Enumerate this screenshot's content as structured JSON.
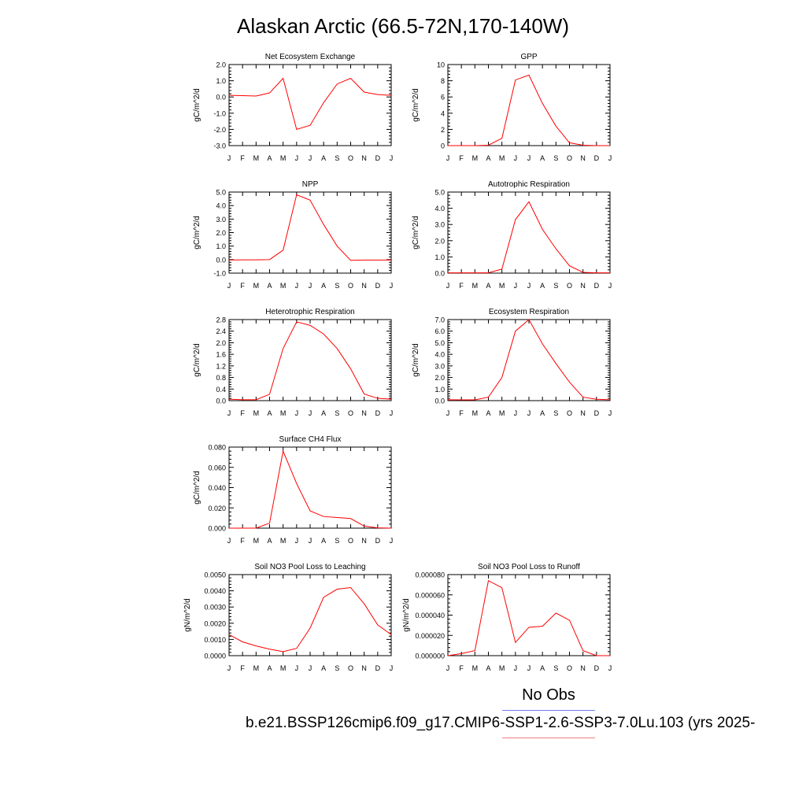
{
  "title": "Alaskan Arctic (66.5-72N,170-140W)",
  "legend": {
    "obs_label": "No Obs",
    "case_label": "b.e21.BSSP126cmip6.f09_g17.CMIP6-SSP1-2.6-SSP3-7.0Lu.103 (yrs 2025-",
    "colors": {
      "case": "#ff0000",
      "obs": "#6f7ff0"
    }
  },
  "chart_data": [
    {
      "type": "line",
      "title": "Net Ecosystem Exchange",
      "ylabel": "gC/m^2/d",
      "x": [
        "J",
        "F",
        "M",
        "A",
        "M",
        "J",
        "J",
        "A",
        "S",
        "O",
        "N",
        "D",
        "J"
      ],
      "ylim": [
        -3.0,
        2.0
      ],
      "yticks": [
        "-3.0",
        "-2.0",
        "-1.0",
        "0.0",
        "1.0",
        "2.0"
      ],
      "ytick_values": [
        -3.0,
        -2.0,
        -1.0,
        0.0,
        1.0,
        2.0
      ],
      "series": [
        {
          "values": [
            0.1,
            0.08,
            0.06,
            0.25,
            1.15,
            -2.0,
            -1.75,
            -0.35,
            0.8,
            1.15,
            0.3,
            0.15,
            0.1
          ]
        }
      ]
    },
    {
      "type": "line",
      "title": "GPP",
      "ylabel": "gC/m^2/d",
      "x": [
        "J",
        "F",
        "M",
        "A",
        "M",
        "J",
        "J",
        "A",
        "S",
        "O",
        "N",
        "D",
        "J"
      ],
      "ylim": [
        0,
        10
      ],
      "yticks": [
        "0",
        "2",
        "4",
        "6",
        "8",
        "10"
      ],
      "ytick_values": [
        0,
        2,
        4,
        6,
        8,
        10
      ],
      "series": [
        {
          "values": [
            0.0,
            0.0,
            0.0,
            0.05,
            0.9,
            8.1,
            8.7,
            5.2,
            2.4,
            0.35,
            0.05,
            0.0,
            0.0
          ]
        }
      ]
    },
    {
      "type": "line",
      "title": "NPP",
      "ylabel": "gC/m^2/d",
      "x": [
        "J",
        "F",
        "M",
        "A",
        "M",
        "J",
        "J",
        "A",
        "S",
        "O",
        "N",
        "D",
        "J"
      ],
      "ylim": [
        -1.0,
        5.0
      ],
      "yticks": [
        "-1.0",
        "0.0",
        "1.0",
        "2.0",
        "3.0",
        "4.0",
        "5.0"
      ],
      "ytick_values": [
        -1.0,
        0.0,
        1.0,
        2.0,
        3.0,
        4.0,
        5.0
      ],
      "series": [
        {
          "values": [
            -0.03,
            -0.02,
            -0.02,
            0.0,
            0.7,
            4.8,
            4.4,
            2.6,
            1.0,
            -0.05,
            -0.03,
            -0.03,
            -0.03
          ]
        }
      ]
    },
    {
      "type": "line",
      "title": "Autotrophic Respiration",
      "ylabel": "gC/m^2/d",
      "x": [
        "J",
        "F",
        "M",
        "A",
        "M",
        "J",
        "J",
        "A",
        "S",
        "O",
        "N",
        "D",
        "J"
      ],
      "ylim": [
        0,
        5.0
      ],
      "yticks": [
        "0.0",
        "1.0",
        "2.0",
        "3.0",
        "4.0",
        "5.0"
      ],
      "ytick_values": [
        0,
        1,
        2,
        3,
        4,
        5
      ],
      "series": [
        {
          "values": [
            0.02,
            0.02,
            0.02,
            0.02,
            0.25,
            3.3,
            4.4,
            2.7,
            1.5,
            0.45,
            0.05,
            0.02,
            0.02
          ]
        }
      ]
    },
    {
      "type": "line",
      "title": "Heterotrophic Respiration",
      "ylabel": "gC/m^2/d",
      "x": [
        "J",
        "F",
        "M",
        "A",
        "M",
        "J",
        "J",
        "A",
        "S",
        "O",
        "N",
        "D",
        "J"
      ],
      "ylim": [
        0,
        2.8
      ],
      "yticks": [
        "0.0",
        "0.4",
        "0.8",
        "1.2",
        "1.6",
        "2.0",
        "2.4",
        "2.8"
      ],
      "ytick_values": [
        0,
        0.4,
        0.8,
        1.2,
        1.6,
        2.0,
        2.4,
        2.8
      ],
      "series": [
        {
          "values": [
            0.05,
            0.03,
            0.03,
            0.22,
            1.8,
            2.72,
            2.6,
            2.3,
            1.8,
            1.1,
            0.23,
            0.08,
            0.05
          ]
        }
      ]
    },
    {
      "type": "line",
      "title": "Ecosystem Respiration",
      "ylabel": "gC/m^2/d",
      "x": [
        "J",
        "F",
        "M",
        "A",
        "M",
        "J",
        "J",
        "A",
        "S",
        "O",
        "N",
        "D",
        "J"
      ],
      "ylim": [
        0,
        7.0
      ],
      "yticks": [
        "0.0",
        "1.0",
        "2.0",
        "3.0",
        "4.0",
        "5.0",
        "6.0",
        "7.0"
      ],
      "ytick_values": [
        0,
        1,
        2,
        3,
        4,
        5,
        6,
        7
      ],
      "series": [
        {
          "values": [
            0.08,
            0.07,
            0.07,
            0.3,
            2.0,
            6.0,
            7.0,
            4.9,
            3.2,
            1.6,
            0.3,
            0.12,
            0.08
          ]
        }
      ]
    },
    {
      "type": "line",
      "title": "Surface CH4 Flux",
      "ylabel": "gC/m^2/d",
      "x": [
        "J",
        "F",
        "M",
        "A",
        "M",
        "J",
        "J",
        "A",
        "S",
        "O",
        "N",
        "D",
        "J"
      ],
      "ylim": [
        0,
        0.08
      ],
      "yticks": [
        "0.000",
        "0.020",
        "0.040",
        "0.060",
        "0.080"
      ],
      "ytick_values": [
        0,
        0.02,
        0.04,
        0.06,
        0.08
      ],
      "series": [
        {
          "values": [
            0.0,
            0.0,
            0.0,
            0.005,
            0.076,
            0.044,
            0.017,
            0.0115,
            0.0105,
            0.0095,
            0.002,
            0.0003,
            0.0
          ]
        }
      ]
    },
    {
      "type": "line",
      "title": "Soil NO3 Pool Loss to Leaching",
      "ylabel": "gN/m^2/d",
      "x": [
        "J",
        "F",
        "M",
        "A",
        "M",
        "J",
        "J",
        "A",
        "S",
        "O",
        "N",
        "D",
        "J"
      ],
      "ylim": [
        0,
        0.005
      ],
      "yticks": [
        "0.0000",
        "0.0010",
        "0.0020",
        "0.0030",
        "0.0040",
        "0.0050"
      ],
      "ytick_values": [
        0,
        0.001,
        0.002,
        0.003,
        0.004,
        0.005
      ],
      "series": [
        {
          "values": [
            0.0013,
            0.00085,
            0.0006,
            0.0004,
            0.00025,
            0.00045,
            0.0017,
            0.0036,
            0.0041,
            0.0042,
            0.0032,
            0.0019,
            0.0013
          ]
        }
      ]
    },
    {
      "type": "line",
      "title": "Soil NO3 Pool Loss to Runoff",
      "ylabel": "gN/m^2/d",
      "x": [
        "J",
        "F",
        "M",
        "A",
        "M",
        "J",
        "J",
        "A",
        "S",
        "O",
        "N",
        "D",
        "J"
      ],
      "ylim": [
        0,
        8e-05
      ],
      "yticks": [
        "0.000000",
        "0.000020",
        "0.000040",
        "0.000060",
        "0.000080"
      ],
      "ytick_values": [
        0,
        2e-05,
        4e-05,
        6e-05,
        8e-05
      ],
      "series": [
        {
          "values": [
            0.0,
            2e-06,
            5e-06,
            7.4e-05,
            6.7e-05,
            1.3e-05,
            2.8e-05,
            2.9e-05,
            4.2e-05,
            3.5e-05,
            5e-06,
            0.0,
            0.0
          ]
        }
      ]
    }
  ]
}
